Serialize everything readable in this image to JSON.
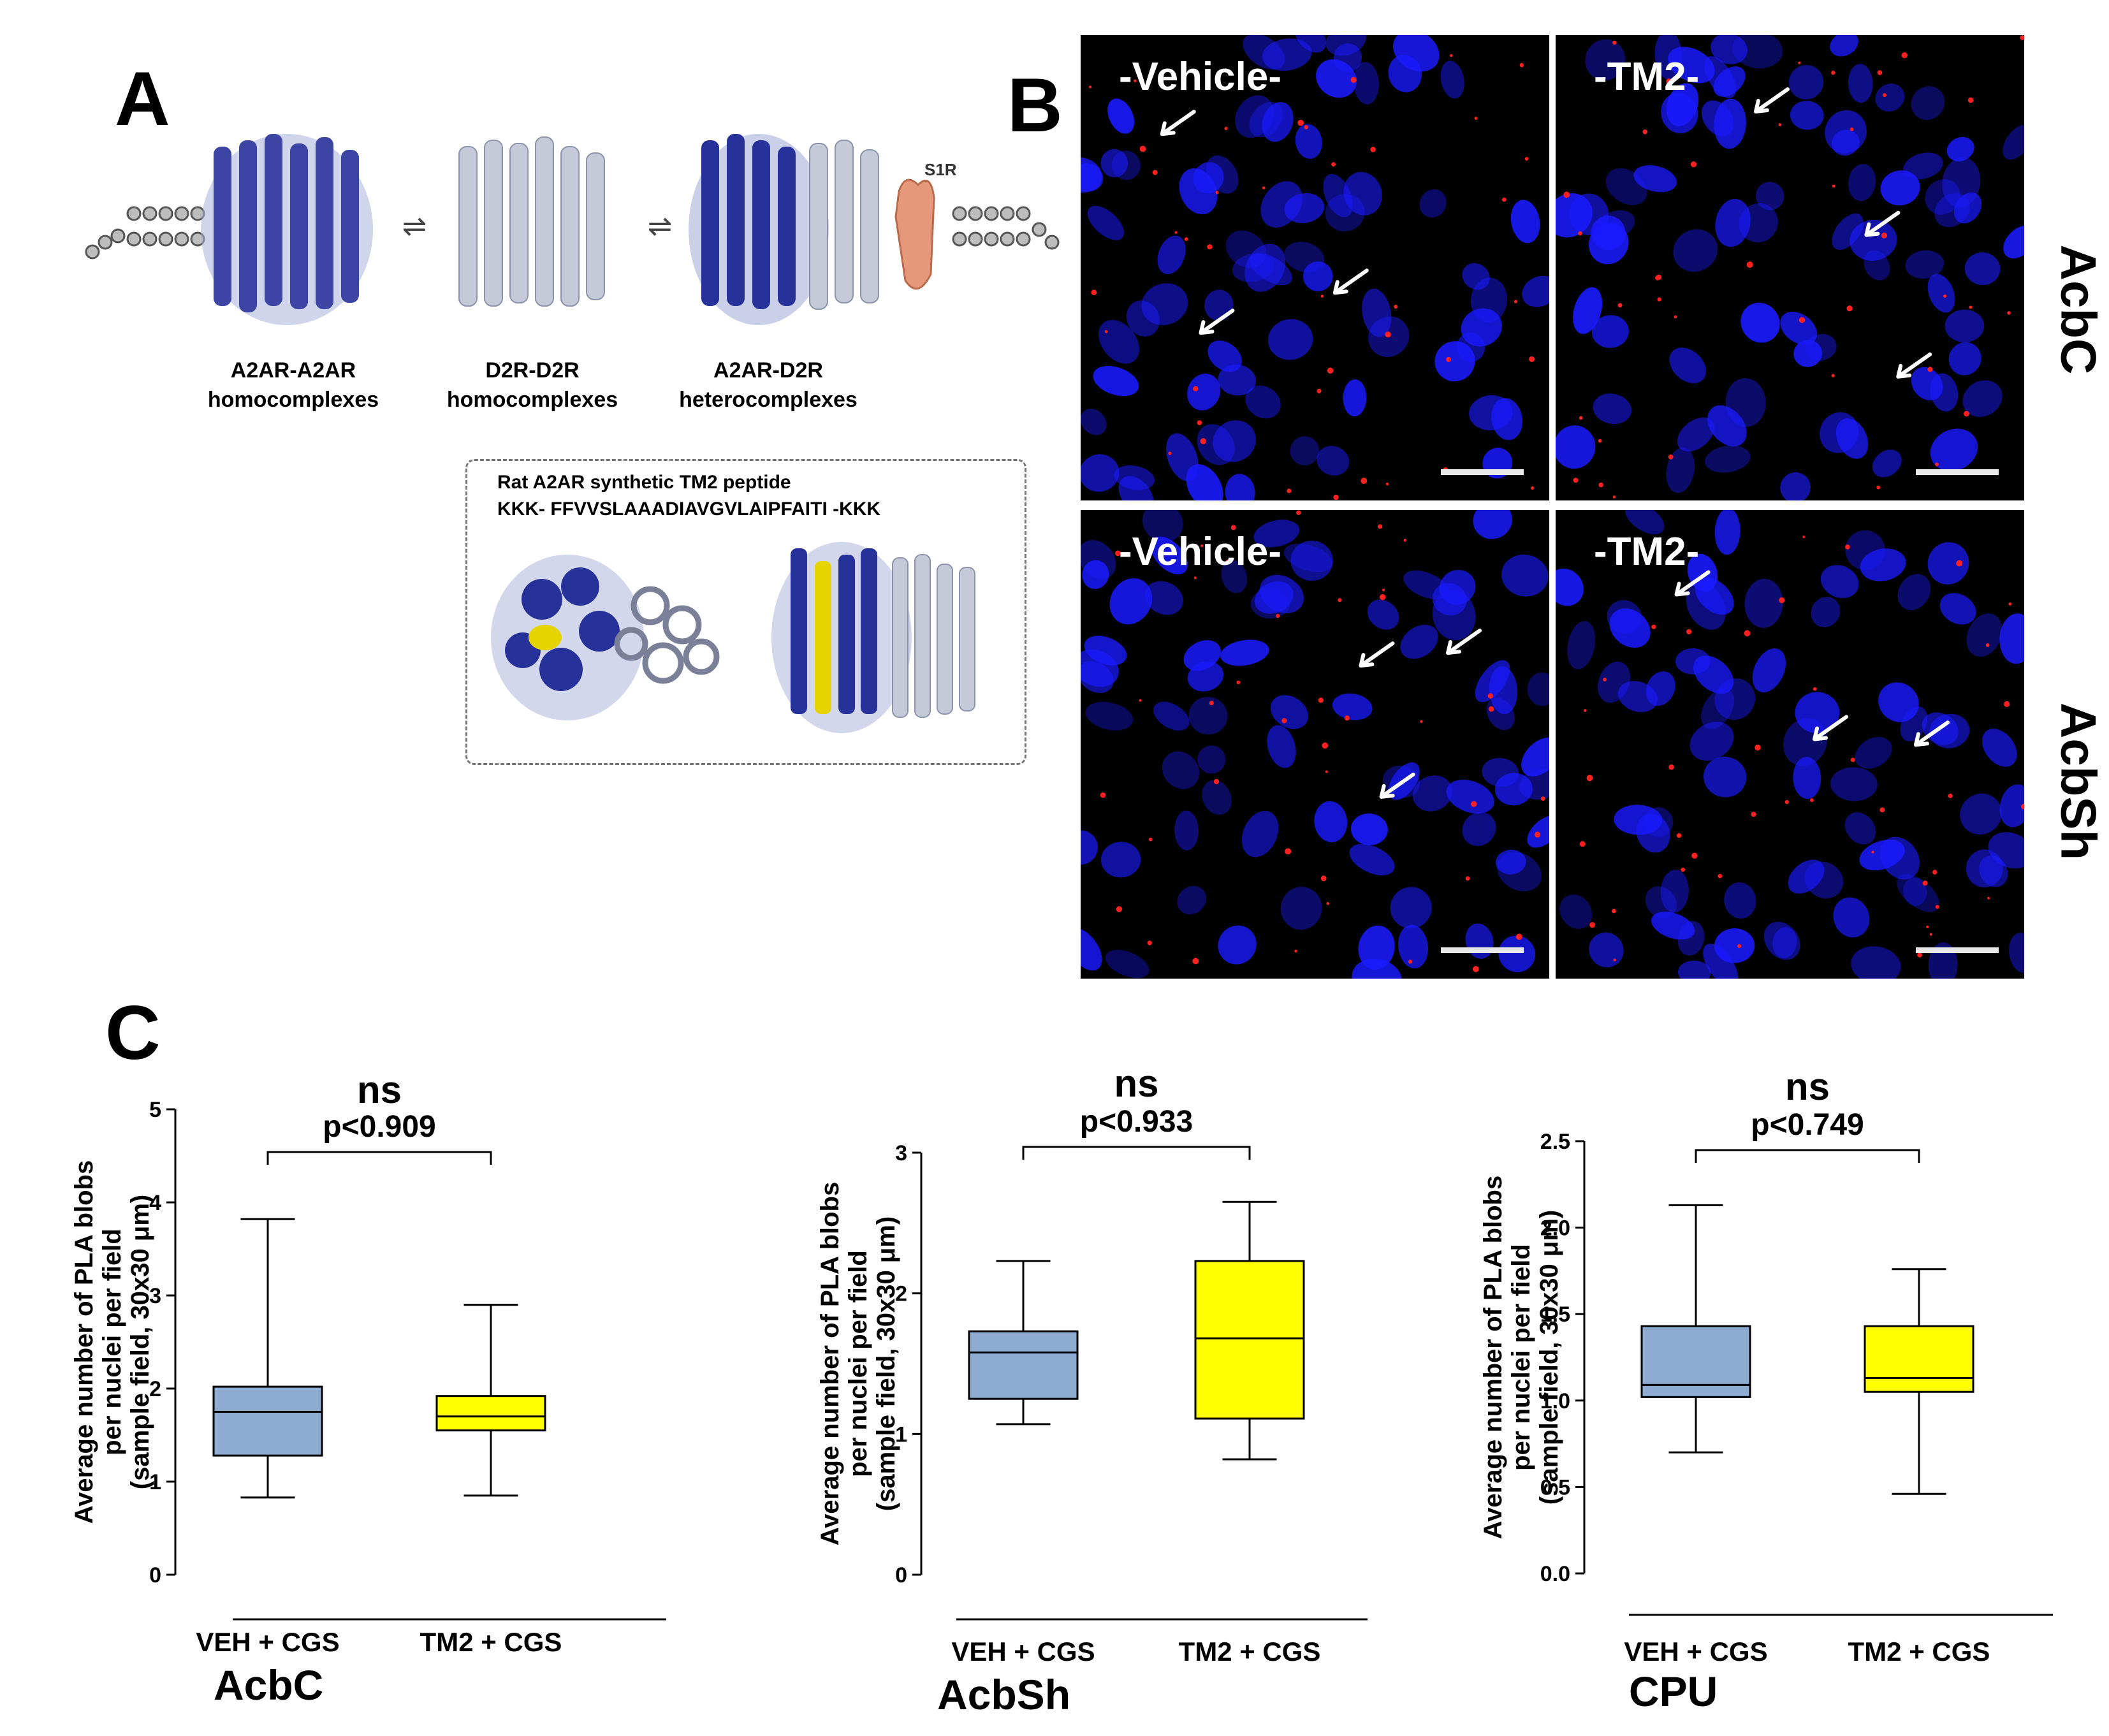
{
  "panel_a": {
    "letter": "A",
    "s1r_label": "S1R",
    "complexes": [
      {
        "line1": "A2AR-A2AR",
        "line2": "homocomplexes"
      },
      {
        "line1": "D2R-D2R",
        "line2": "homocomplexes"
      },
      {
        "line1": "A2AR-D2R",
        "line2": "heterocomplexes"
      }
    ],
    "inset": {
      "title": "Rat A2AR synthetic TM2 peptide",
      "sequence": "KKK- FFVVSLAAADIAVGVLAIPFAITI -KKK"
    },
    "colors": {
      "dark_blue": "#1f2a8c",
      "light_gray_blue": "#c7ccdc",
      "s1r": "#e6987a",
      "tm2_yellow": "#e5d400"
    }
  },
  "panel_b": {
    "letter": "B",
    "images": [
      {
        "label": "-Vehicle-",
        "region": "AcbC"
      },
      {
        "label": "-TM2-",
        "region": "AcbC"
      },
      {
        "label": "-Vehicle-",
        "region": "AcbSh"
      },
      {
        "label": "-TM2-",
        "region": "AcbSh"
      }
    ],
    "row_labels": [
      "AcbC",
      "AcbSh"
    ],
    "colors": {
      "nuclei": "#1a1aff",
      "pla_blob": "#ff2020",
      "background": "#000000"
    }
  },
  "panel_c": {
    "letter": "C",
    "y_axis_label_lines": [
      "Average number of PLA blobs",
      "per nuclei per field",
      "(sample field, 30x30 μm)"
    ]
  },
  "chart_data": [
    {
      "type": "box",
      "region": "AcbC",
      "ylim": [
        0,
        5
      ],
      "yticks": [
        "0",
        "1",
        "2",
        "3",
        "4",
        "5"
      ],
      "categories": [
        "VEH + CGS",
        "TM2 + CGS"
      ],
      "boxes": [
        {
          "min": 0.83,
          "q1": 1.28,
          "median": 1.75,
          "q3": 2.02,
          "max": 3.82,
          "color": "#8eabd2"
        },
        {
          "min": 0.85,
          "q1": 1.55,
          "median": 1.7,
          "q3": 1.92,
          "max": 2.9,
          "color": "#ffff00"
        }
      ],
      "significance": "ns",
      "pvalue": "p<0.909"
    },
    {
      "type": "box",
      "region": "AcbSh",
      "ylim": [
        0,
        3
      ],
      "yticks": [
        "0",
        "1",
        "2",
        "3"
      ],
      "categories": [
        "VEH + CGS",
        "TM2 + CGS"
      ],
      "boxes": [
        {
          "min": 1.07,
          "q1": 1.25,
          "median": 1.58,
          "q3": 1.73,
          "max": 2.23,
          "color": "#8eabd2"
        },
        {
          "min": 0.82,
          "q1": 1.11,
          "median": 1.68,
          "q3": 2.23,
          "max": 2.65,
          "color": "#ffff00"
        }
      ],
      "significance": "ns",
      "pvalue": "p<0.933"
    },
    {
      "type": "box",
      "region": "CPU",
      "ylim": [
        0,
        2.5
      ],
      "yticks": [
        "0.0",
        "0.5",
        "1.0",
        "1.5",
        "2.0",
        "2.5"
      ],
      "categories": [
        "VEH + CGS",
        "TM2 + CGS"
      ],
      "boxes": [
        {
          "min": 0.7,
          "q1": 1.02,
          "median": 1.09,
          "q3": 1.43,
          "max": 2.13,
          "color": "#8eabd2"
        },
        {
          "min": 0.46,
          "q1": 1.05,
          "median": 1.13,
          "q3": 1.43,
          "max": 1.76,
          "color": "#ffff00"
        }
      ],
      "significance": "ns",
      "pvalue": "p<0.749"
    }
  ]
}
